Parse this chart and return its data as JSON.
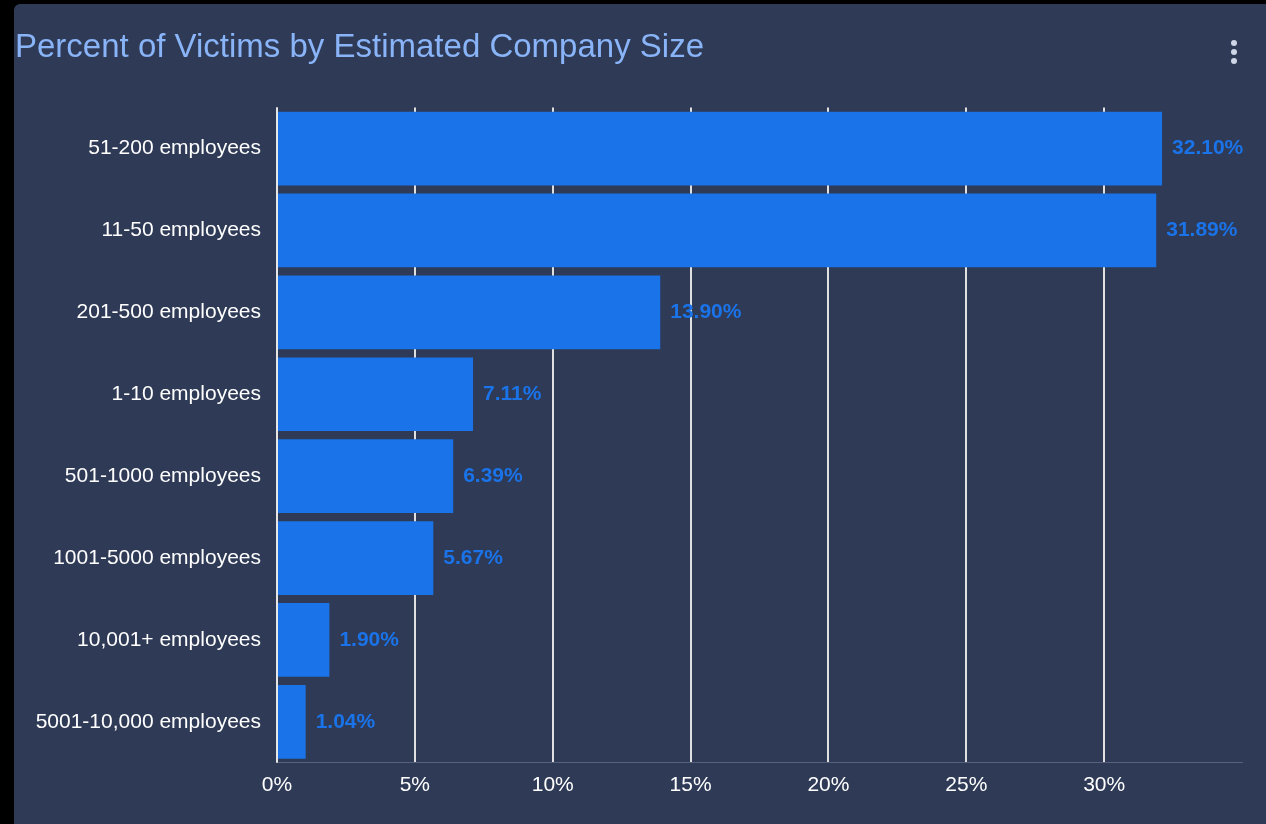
{
  "chart_data": {
    "type": "bar",
    "orientation": "horizontal",
    "title": "Percent of Victims by Estimated Company Size",
    "categories": [
      "51-200 employees",
      "11-50 employees",
      "201-500 employees",
      "1-10 employees",
      "501-1000 employees",
      "1001-5000 employees",
      "10,001+ employees",
      "5001-10,000 employees"
    ],
    "values": [
      32.1,
      31.89,
      13.9,
      7.11,
      6.39,
      5.67,
      1.9,
      1.04
    ],
    "value_labels": [
      "32.10%",
      "31.89%",
      "13.90%",
      "7.11%",
      "6.39%",
      "5.67%",
      "1.90%",
      "1.04%"
    ],
    "color": "#1a73e8",
    "xlim": [
      0,
      35
    ],
    "xticks": [
      {
        "value": 0,
        "label": "0%"
      },
      {
        "value": 5,
        "label": "5%"
      },
      {
        "value": 10,
        "label": "10%"
      },
      {
        "value": 15,
        "label": "15%"
      },
      {
        "value": 20,
        "label": "20%"
      },
      {
        "value": 25,
        "label": "25%"
      },
      {
        "value": 30,
        "label": "30%"
      }
    ],
    "grid": "x",
    "legend": false
  }
}
